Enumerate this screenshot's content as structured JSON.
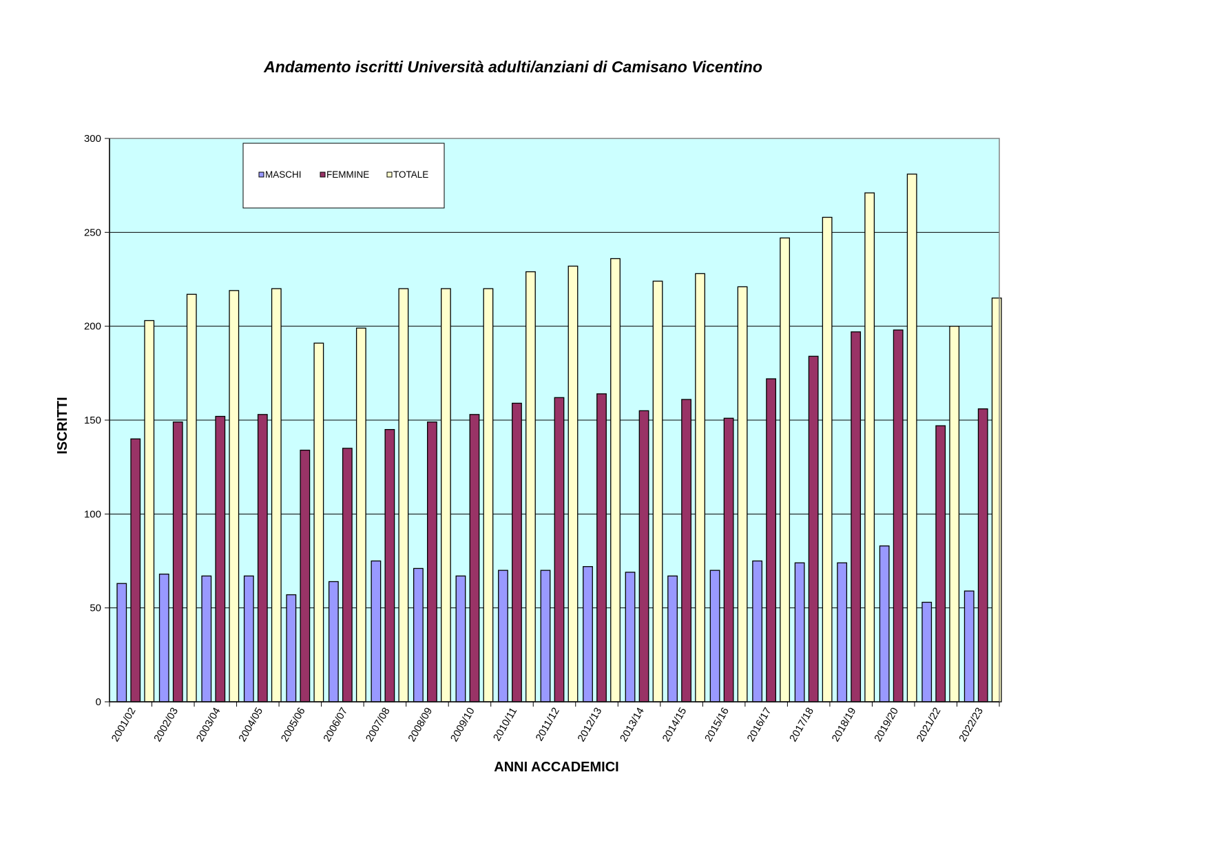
{
  "chart_data": {
    "type": "bar",
    "title": "Andamento iscritti Università adulti/anziani di Camisano Vicentino",
    "xlabel": "ANNI ACCADEMICI",
    "ylabel": "ISCRITTI",
    "ylim": [
      0,
      300
    ],
    "yticks": [
      "0",
      "50",
      "100",
      "150",
      "200",
      "250",
      "300"
    ],
    "grid": true,
    "legend_position": "top-left",
    "categories": [
      "2001/02",
      "2002/03",
      "2003/04",
      "2004/05",
      "2005/06",
      "2006/07",
      "2007/08",
      "2008/09",
      "2009/10",
      "2010/11",
      "2011/12",
      "2012/13",
      "2013/14",
      "2014/15",
      "2015/16",
      "2016/17",
      "2017/18",
      "2018/19",
      "2019/20",
      "2021/22",
      "2022/23"
    ],
    "series": [
      {
        "name": "MASCHI",
        "color": "#9999ff",
        "values": [
          63,
          68,
          67,
          67,
          57,
          64,
          75,
          71,
          67,
          70,
          70,
          72,
          69,
          67,
          70,
          75,
          74,
          74,
          83,
          53,
          59
        ]
      },
      {
        "name": "FEMMINE",
        "color": "#993366",
        "values": [
          140,
          149,
          152,
          153,
          134,
          135,
          145,
          149,
          153,
          159,
          162,
          164,
          155,
          161,
          151,
          172,
          184,
          197,
          198,
          147,
          156
        ]
      },
      {
        "name": "TOTALE",
        "color": "#ffffcc",
        "values": [
          203,
          217,
          219,
          220,
          191,
          199,
          220,
          220,
          220,
          229,
          232,
          236,
          224,
          228,
          221,
          247,
          258,
          271,
          281,
          200,
          215
        ]
      }
    ],
    "plot_background": "#ccffff"
  }
}
